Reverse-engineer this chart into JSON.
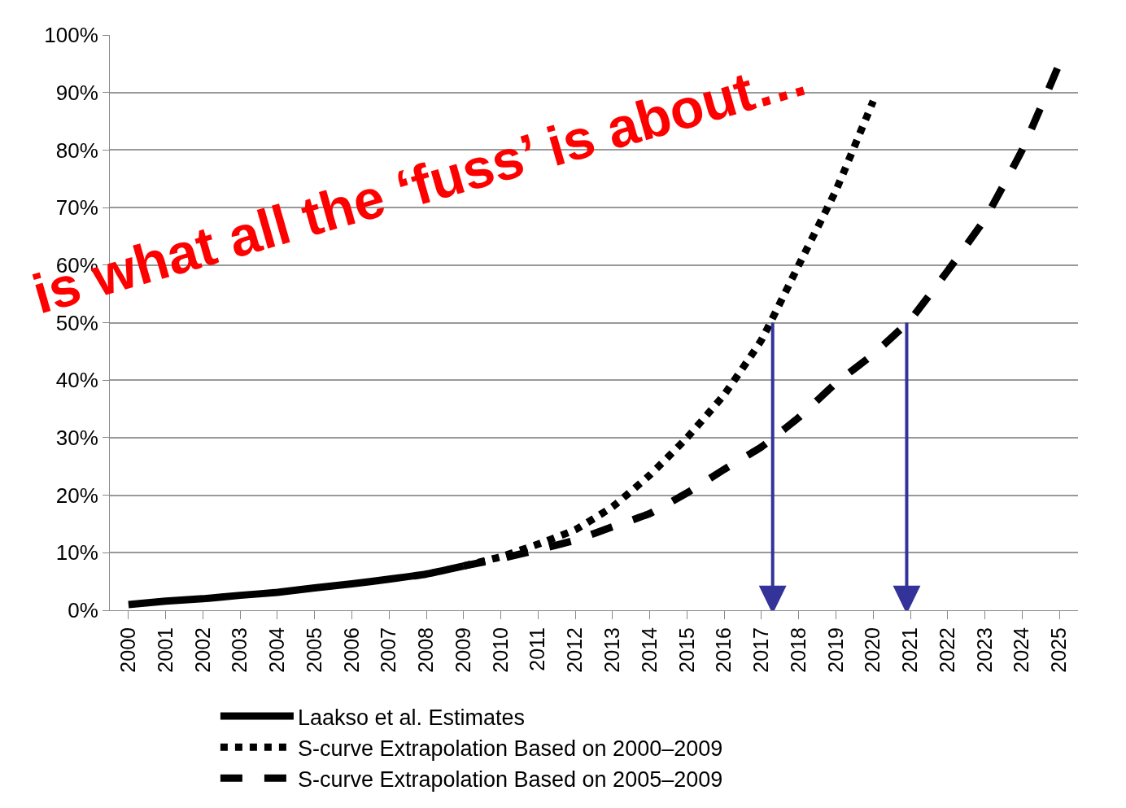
{
  "chart_data": {
    "type": "line",
    "x": [
      2000,
      2001,
      2002,
      2003,
      2004,
      2005,
      2006,
      2007,
      2008,
      2009
    ],
    "series": [
      {
        "name": "Laakso et al. Estimates",
        "color": "#000000",
        "line_style": "solid",
        "values": [
          1,
          1.6,
          2,
          2.6,
          3.1,
          3.9,
          4.6,
          5.4,
          6.3,
          7.7
        ]
      },
      {
        "name": "S-curve Extrapolation Based on 2000–2009",
        "color": "#000000",
        "line_style": "dotted",
        "x": [
          2009,
          2010,
          2011,
          2012,
          2013,
          2014,
          2015,
          2016,
          2017,
          2018,
          2019,
          2020
        ],
        "values": [
          7.7,
          9.3,
          11.5,
          14,
          18,
          23.5,
          30,
          37.5,
          47,
          60,
          73,
          88.5
        ]
      },
      {
        "name": "S-curve Extrapolation Based on 2005–2009",
        "color": "#000000",
        "line_style": "dashed",
        "x": [
          2009,
          2010,
          2011,
          2012,
          2013,
          2014,
          2015,
          2016,
          2017,
          2018,
          2019,
          2020,
          2021,
          2022,
          2023,
          2024,
          2025
        ],
        "values": [
          7.7,
          9,
          10.5,
          12.2,
          14.5,
          16.8,
          20.4,
          24.5,
          28.4,
          33.5,
          39.5,
          44.5,
          50.5,
          59,
          68,
          80,
          95
        ]
      }
    ],
    "xlim": [
      1999.5,
      2025.5
    ],
    "xticks": [
      2000,
      2001,
      2002,
      2003,
      2004,
      2005,
      2006,
      2007,
      2008,
      2009,
      2010,
      2011,
      2012,
      2013,
      2014,
      2015,
      2016,
      2017,
      2018,
      2019,
      2020,
      2021,
      2022,
      2023,
      2024,
      2025
    ],
    "ylim": [
      0,
      100
    ],
    "yticks": [
      {
        "value": 0,
        "label": "0%"
      },
      {
        "value": 10,
        "label": "10%"
      },
      {
        "value": 20,
        "label": "20%"
      },
      {
        "value": 30,
        "label": "30%"
      },
      {
        "value": 40,
        "label": "40%"
      },
      {
        "value": 50,
        "label": "50%"
      },
      {
        "value": 60,
        "label": "60%"
      },
      {
        "value": 70,
        "label": "70%"
      },
      {
        "value": 80,
        "label": "80%"
      },
      {
        "value": 90,
        "label": "90%"
      },
      {
        "value": 100,
        "label": "100%"
      }
    ],
    "grid": "y",
    "legend": "bottom",
    "marker": "none",
    "ref_lines": [
      {
        "axis": "x",
        "value": 2017.3,
        "color": "#333399"
      },
      {
        "axis": "x",
        "value": 2020.9,
        "color": "#333399"
      }
    ],
    "annotations": [
      "is what all the ‘fuss’ is about…"
    ]
  }
}
